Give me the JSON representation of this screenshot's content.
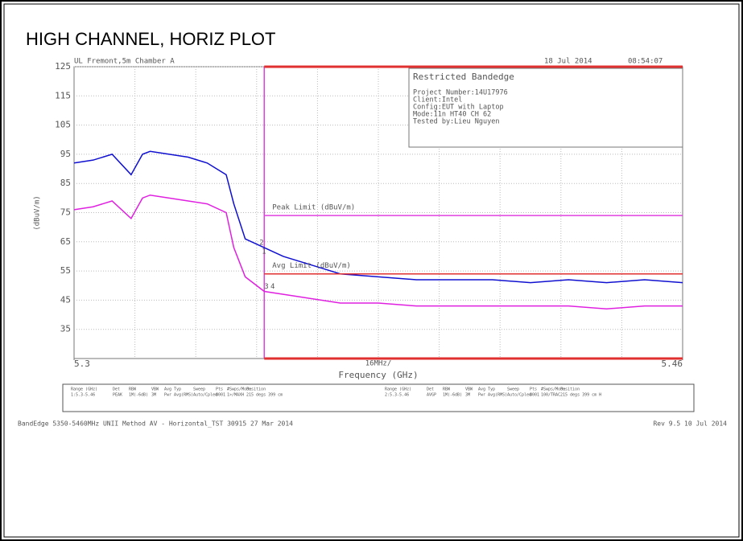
{
  "chart_data": {
    "type": "line",
    "title": "HIGH CHANNEL, HORIZ PLOT",
    "header_left": "UL Fremont,5m Chamber A",
    "header_date": "18 Jul 2014",
    "header_time": "08:54:07",
    "info_box": [
      "Restricted Bandedge",
      "Project Number:14U17976",
      "Client:Intel",
      "Config:EUT with Laptop",
      "Mode:11n HT40 CH 62",
      "Tested by:Lieu Nguyen"
    ],
    "ylabel": "(dBuV/m)",
    "xlabel": "Frequency (GHz)",
    "span_label": "16MHz/",
    "xlim": [
      5.3,
      5.46
    ],
    "xticks": [
      {
        "value": 5.3,
        "label": "5.3"
      },
      {
        "value": 5.46,
        "label": "5.46"
      }
    ],
    "ylim": [
      25,
      125
    ],
    "yticks": [
      35,
      45,
      55,
      65,
      75,
      85,
      95,
      105,
      115,
      125
    ],
    "grid": true,
    "band_edge": 5.35,
    "limits": [
      {
        "name": "Peak Limit (dBuV/m)",
        "value": 74,
        "color": "#e040e0"
      },
      {
        "name": "Avg Limit (dBuV/m)",
        "value": 54,
        "color": "#e03030"
      }
    ],
    "x": [
      5.3,
      5.305,
      5.31,
      5.315,
      5.318,
      5.32,
      5.325,
      5.33,
      5.335,
      5.34,
      5.342,
      5.345,
      5.35,
      5.355,
      5.36,
      5.365,
      5.37,
      5.38,
      5.39,
      5.4,
      5.41,
      5.42,
      5.43,
      5.44,
      5.45,
      5.46
    ],
    "series": [
      {
        "name": "PEAK",
        "color": "#1010d0",
        "values": [
          92,
          93,
          95,
          88,
          95,
          96,
          95,
          94,
          92,
          88,
          78,
          66,
          63,
          60,
          58,
          56,
          54,
          53,
          52,
          52,
          52,
          51,
          52,
          51,
          52,
          51
        ]
      },
      {
        "name": "AVGP",
        "color": "#e020e0",
        "values": [
          76,
          77,
          79,
          73,
          80,
          81,
          80,
          79,
          78,
          75,
          63,
          53,
          48,
          47,
          46,
          45,
          44,
          44,
          43,
          43,
          43,
          43,
          43,
          42,
          43,
          43
        ]
      }
    ],
    "markers": [
      {
        "label": "2",
        "x": 5.35,
        "y": 63
      },
      {
        "label": "1",
        "x": 5.35,
        "y": 60
      },
      {
        "label": "3",
        "x": 5.35,
        "y": 48
      },
      {
        "label": "4",
        "x": 5.351,
        "y": 48
      }
    ],
    "settings_table": {
      "header": [
        "Range (GHz)",
        "Det",
        "RBW",
        "VBW",
        "Avg Typ",
        "Sweep",
        "Pts",
        "#Swps/Mode",
        "Position"
      ],
      "rows": [
        [
          "1:5.3-5.46",
          "PEAK",
          "1M(-6dB)",
          "3M",
          "Pwr Avg(RMS)",
          "Auto/Cpled",
          "8001",
          "1>/MAXH",
          "215 degs 399 cm"
        ],
        [
          "2:5.3-5.46",
          "AVGP",
          "1M(-6dB)",
          "3M",
          "Pwr Avg(RMS)",
          "Auto/Cpled",
          "8001",
          "100/TRAC",
          "215 degs 399 cm H"
        ]
      ]
    },
    "footer_left": "BandEdge 5350-5460MHz UNII Method AV - Horizontal_TST 30915 27 Mar 2014",
    "footer_right": "Rev 9.5 10 Jul 2014"
  }
}
